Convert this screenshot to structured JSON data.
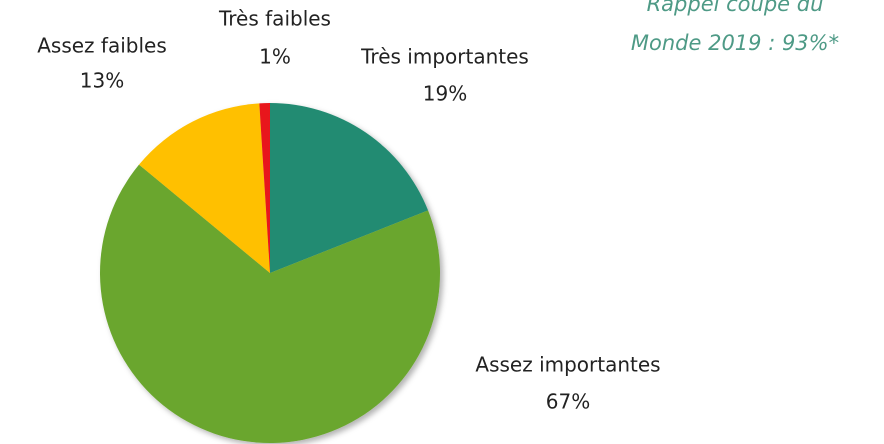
{
  "chart_data": {
    "type": "pie",
    "categories": [
      "Très importantes",
      "Assez importantes",
      "Assez faibles",
      "Très faibles"
    ],
    "values": [
      19,
      67,
      13,
      1
    ],
    "value_labels": [
      "19%",
      "67%",
      "13%",
      "1%"
    ],
    "colors": [
      "#238b72",
      "#6aa62f",
      "#ffc000",
      "#e8171a"
    ],
    "annotation": [
      "Rappel coupe du",
      "Monde 2019 : 93%*"
    ]
  }
}
